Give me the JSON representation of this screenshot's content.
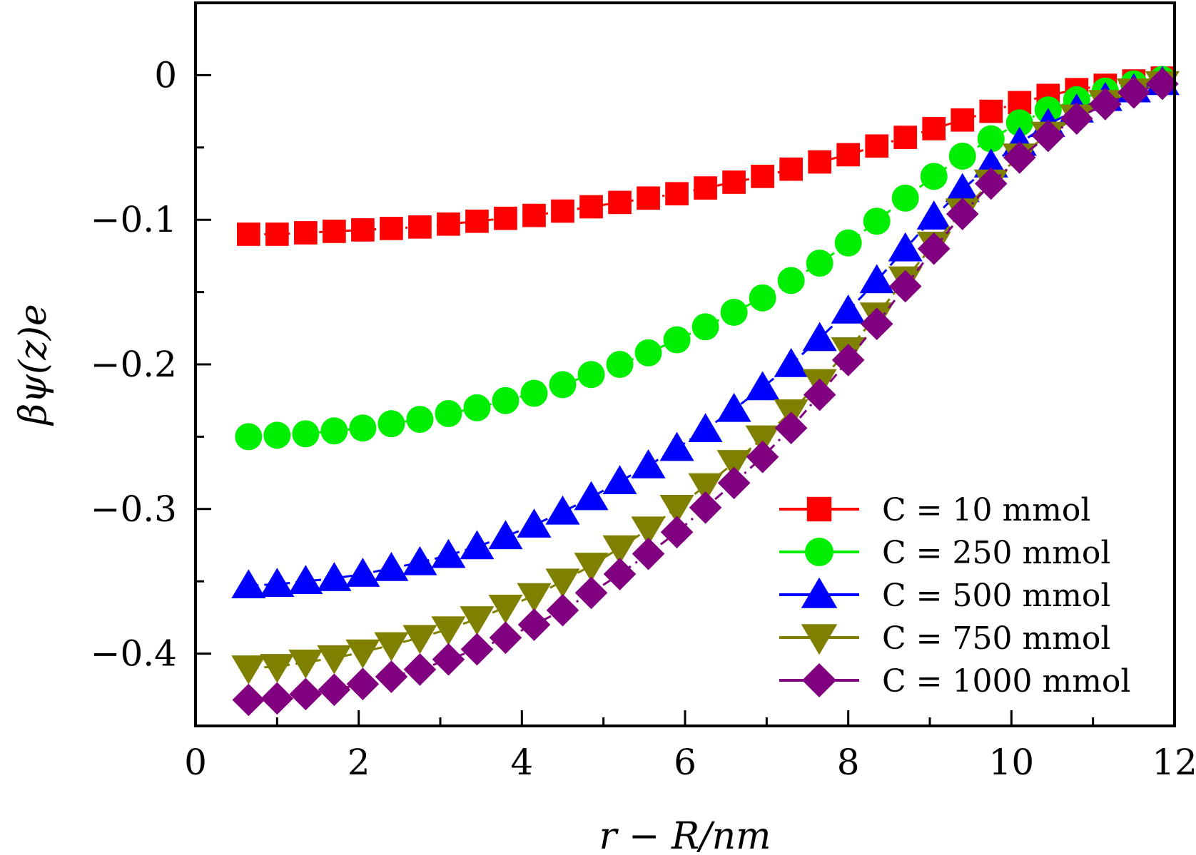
{
  "chart_data": {
    "type": "scatter",
    "title": "",
    "xlabel": "r − R/nm",
    "ylabel": "βψ(z)e",
    "xlim": [
      0,
      12
    ],
    "ylim": [
      -0.45,
      0.05
    ],
    "xticks": [
      0,
      2,
      4,
      6,
      8,
      10,
      12
    ],
    "xtick_labels": [
      "0",
      "2",
      "4",
      "6",
      "8",
      "10",
      "12"
    ],
    "yticks": [
      0,
      -0.1,
      -0.2,
      -0.3,
      -0.4
    ],
    "ytick_labels": [
      "0",
      "−0.1",
      "−0.2",
      "−0.3",
      "−0.4"
    ],
    "grid": false,
    "legend_position": "bottom-right",
    "x": [
      0.65,
      1.0,
      1.35,
      1.7,
      2.05,
      2.4,
      2.75,
      3.1,
      3.45,
      3.8,
      4.15,
      4.5,
      4.85,
      5.2,
      5.55,
      5.9,
      6.25,
      6.6,
      6.95,
      7.3,
      7.65,
      8.0,
      8.35,
      8.7,
      9.05,
      9.4,
      9.75,
      10.1,
      10.45,
      10.8,
      11.15,
      11.5,
      11.85
    ],
    "series": [
      {
        "name": "C = 10 mmol",
        "color": "#ff0000",
        "marker": "square",
        "values": [
          -0.11,
          -0.11,
          -0.109,
          -0.108,
          -0.107,
          -0.106,
          -0.105,
          -0.103,
          -0.101,
          -0.099,
          -0.097,
          -0.094,
          -0.091,
          -0.088,
          -0.085,
          -0.082,
          -0.078,
          -0.074,
          -0.07,
          -0.065,
          -0.06,
          -0.055,
          -0.049,
          -0.043,
          -0.037,
          -0.031,
          -0.025,
          -0.019,
          -0.014,
          -0.01,
          -0.007,
          -0.004,
          -0.002
        ]
      },
      {
        "name": "C = 250 mmol",
        "color": "#00ee00",
        "marker": "circle",
        "values": [
          -0.25,
          -0.249,
          -0.248,
          -0.246,
          -0.244,
          -0.241,
          -0.238,
          -0.234,
          -0.23,
          -0.225,
          -0.22,
          -0.214,
          -0.207,
          -0.2,
          -0.192,
          -0.183,
          -0.174,
          -0.164,
          -0.154,
          -0.142,
          -0.13,
          -0.116,
          -0.101,
          -0.085,
          -0.07,
          -0.056,
          -0.044,
          -0.033,
          -0.024,
          -0.017,
          -0.011,
          -0.006,
          -0.003
        ]
      },
      {
        "name": "C = 500 mmol",
        "color": "#0000ff",
        "marker": "triangle-up",
        "values": [
          -0.353,
          -0.352,
          -0.35,
          -0.348,
          -0.345,
          -0.341,
          -0.337,
          -0.332,
          -0.326,
          -0.319,
          -0.311,
          -0.302,
          -0.292,
          -0.281,
          -0.27,
          -0.258,
          -0.245,
          -0.231,
          -0.216,
          -0.2,
          -0.182,
          -0.163,
          -0.142,
          -0.12,
          -0.098,
          -0.079,
          -0.062,
          -0.047,
          -0.034,
          -0.024,
          -0.016,
          -0.01,
          -0.005
        ]
      },
      {
        "name": "C = 750 mmol",
        "color": "#808000",
        "marker": "triangle-down",
        "values": [
          -0.41,
          -0.409,
          -0.406,
          -0.403,
          -0.399,
          -0.394,
          -0.389,
          -0.383,
          -0.376,
          -0.368,
          -0.36,
          -0.35,
          -0.339,
          -0.327,
          -0.314,
          -0.299,
          -0.284,
          -0.268,
          -0.251,
          -0.233,
          -0.212,
          -0.19,
          -0.166,
          -0.141,
          -0.117,
          -0.094,
          -0.074,
          -0.056,
          -0.041,
          -0.029,
          -0.019,
          -0.011,
          -0.006
        ]
      },
      {
        "name": "C = 1000 mmol",
        "color": "#800080",
        "marker": "diamond",
        "values": [
          -0.432,
          -0.431,
          -0.428,
          -0.425,
          -0.421,
          -0.416,
          -0.411,
          -0.404,
          -0.397,
          -0.389,
          -0.38,
          -0.37,
          -0.358,
          -0.345,
          -0.331,
          -0.316,
          -0.299,
          -0.282,
          -0.264,
          -0.244,
          -0.221,
          -0.197,
          -0.172,
          -0.146,
          -0.12,
          -0.096,
          -0.075,
          -0.057,
          -0.042,
          -0.03,
          -0.02,
          -0.012,
          -0.006
        ]
      }
    ]
  }
}
